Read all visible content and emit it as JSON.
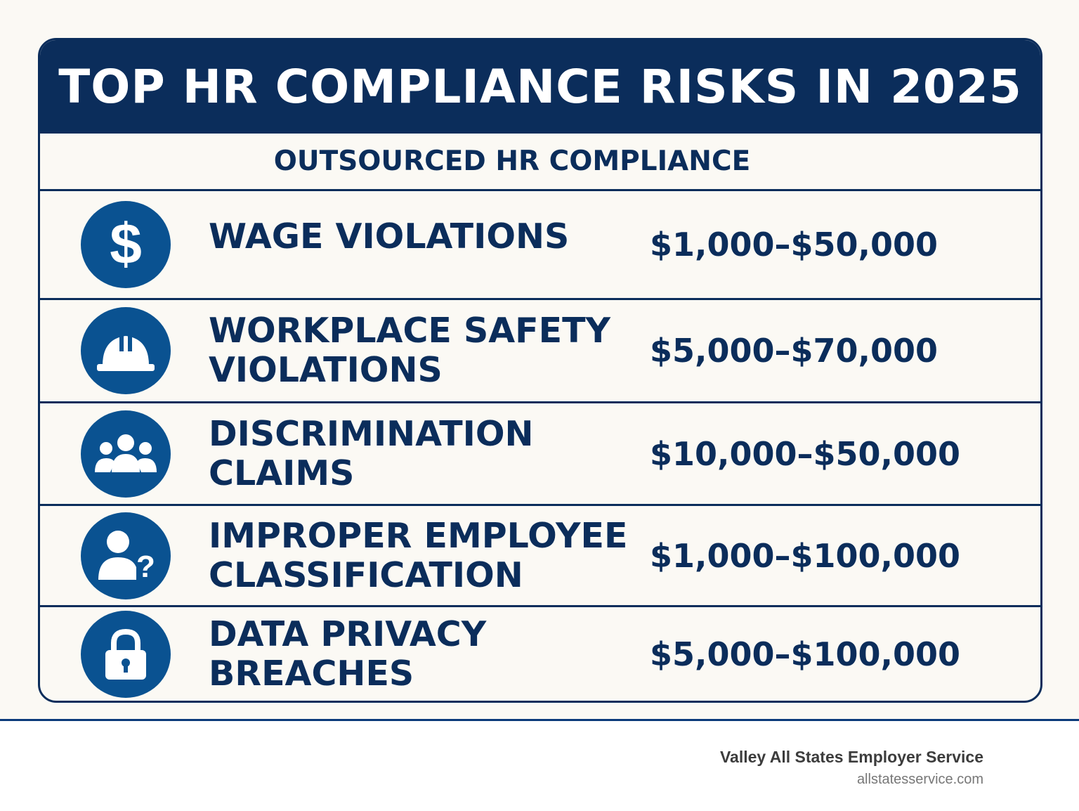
{
  "title": "TOP HR COMPLIANCE RISKS IN 2025",
  "subtitle": "OUTSOURCED HR COMPLIANCE",
  "colors": {
    "navy": "#0b2d5b",
    "icon_blue": "#0a5291",
    "background": "#fbf9f4"
  },
  "risks": [
    {
      "name": "WAGE VIOLATIONS",
      "amount": "$1,000–$50,000",
      "icon": "dollar-icon"
    },
    {
      "name": "WORKPLACE SAFETY VIOLATIONS",
      "amount": "$5,000–$70,000",
      "icon": "hard-hat-icon"
    },
    {
      "name": "DISCRIMINATION CLAIMS",
      "amount": "$10,000–$50,000",
      "icon": "group-icon"
    },
    {
      "name": "IMPROPER EMPLOYEE CLASSIFICATION",
      "amount": "$1,000–$100,000",
      "icon": "person-question-icon"
    },
    {
      "name": "DATA PRIVACY BREACHES",
      "amount": "$5,000–$100,000",
      "icon": "lock-icon"
    }
  ],
  "footer": {
    "company": "Valley All States Employer Service",
    "website": "allstatesservice.com"
  }
}
